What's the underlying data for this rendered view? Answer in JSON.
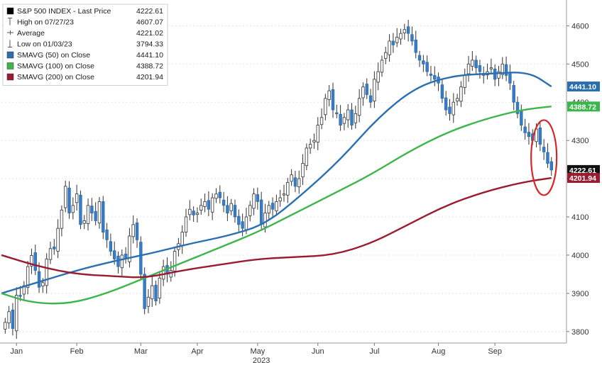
{
  "chart_data": {
    "type": "candlestick",
    "year_label": "2023",
    "x_ticks": [
      "Jan",
      "Feb",
      "Mar",
      "Apr",
      "May",
      "Jun",
      "Jul",
      "Aug",
      "Sep"
    ],
    "y_ticks": [
      3800,
      3900,
      4000,
      4100,
      4200,
      4300,
      4400,
      4500,
      4600
    ],
    "ylim": [
      3770,
      4660
    ],
    "legend": [
      {
        "label": "S&P 500 INDEX - Last Price",
        "value": "4222.61",
        "marker": "square",
        "color": "#000000"
      },
      {
        "label": "High on 07/27/23",
        "value": "4607.07",
        "marker": "high",
        "color": "#555555"
      },
      {
        "label": "Average",
        "value": "4221.02",
        "marker": "avg",
        "color": "#555555"
      },
      {
        "label": "Low on 01/03/23",
        "value": "3794.33",
        "marker": "low",
        "color": "#555555"
      },
      {
        "label": "SMAVG (50)  on Close",
        "value": "4441.10",
        "marker": "square",
        "color": "#2a6fb0"
      },
      {
        "label": "SMAVG (100)  on Close",
        "value": "4388.72",
        "marker": "square",
        "color": "#3cb54a"
      },
      {
        "label": "SMAVG (200)  on Close",
        "value": "4201.94",
        "marker": "square",
        "color": "#9b1b30"
      }
    ],
    "price_tags": [
      {
        "value": "4441.10",
        "level": 4441.1,
        "color": "#2a6fb0",
        "text_color": "#ffffff"
      },
      {
        "value": "4388.72",
        "level": 4388.72,
        "color": "#3cb54a",
        "text_color": "#ffffff"
      },
      {
        "value": "4222.61",
        "level": 4222.61,
        "color": "#111111",
        "text_color": "#ffffff"
      },
      {
        "value": "4201.94",
        "level": 4201.94,
        "color": "#9b1b30",
        "text_color": "#ffffff"
      }
    ],
    "series": [
      {
        "name": "S&P 500 INDEX",
        "style": "candles",
        "points": [
          [
            1,
            3824
          ],
          [
            2,
            3852
          ],
          [
            3,
            3808
          ],
          [
            4,
            3895
          ],
          [
            5,
            3892
          ],
          [
            6,
            3920
          ],
          [
            7,
            3970
          ],
          [
            8,
            3999
          ],
          [
            9,
            3960
          ],
          [
            10,
            3916
          ],
          [
            11,
            3928
          ],
          [
            12,
            3990
          ],
          [
            13,
            4017
          ],
          [
            14,
            4016
          ],
          [
            15,
            4070
          ],
          [
            16,
            4118
          ],
          [
            17,
            4180
          ],
          [
            18,
            4110
          ],
          [
            19,
            4130
          ],
          [
            20,
            4160
          ],
          [
            21,
            4080
          ],
          [
            22,
            4090
          ],
          [
            23,
            4130
          ],
          [
            24,
            4110
          ],
          [
            25,
            4090
          ],
          [
            26,
            4140
          ],
          [
            27,
            4060
          ],
          [
            28,
            4040
          ],
          [
            29,
            4010
          ],
          [
            30,
            3990
          ],
          [
            31,
            3970
          ],
          [
            32,
            4000
          ],
          [
            33,
            3990
          ],
          [
            34,
            4050
          ],
          [
            35,
            4080
          ],
          [
            36,
            4040
          ],
          [
            37,
            3950
          ],
          [
            38,
            3860
          ],
          [
            39,
            3890
          ],
          [
            40,
            3920
          ],
          [
            41,
            3880
          ],
          [
            42,
            3940
          ],
          [
            43,
            3970
          ],
          [
            44,
            3950
          ],
          [
            45,
            3960
          ],
          [
            46,
            4010
          ],
          [
            47,
            4030
          ],
          [
            48,
            4060
          ],
          [
            49,
            4100
          ],
          [
            50,
            4120
          ],
          [
            51,
            4105
          ],
          [
            52,
            4110
          ],
          [
            53,
            4130
          ],
          [
            54,
            4140
          ],
          [
            55,
            4120
          ],
          [
            56,
            4150
          ],
          [
            57,
            4160
          ],
          [
            58,
            4150
          ],
          [
            59,
            4130
          ],
          [
            60,
            4110
          ],
          [
            61,
            4135
          ],
          [
            62,
            4100
          ],
          [
            63,
            4080
          ],
          [
            64,
            4070
          ],
          [
            65,
            4100
          ],
          [
            66,
            4130
          ],
          [
            67,
            4160
          ],
          [
            68,
            4140
          ],
          [
            69,
            4080
          ],
          [
            70,
            4110
          ],
          [
            71,
            4130
          ],
          [
            72,
            4120
          ],
          [
            73,
            4140
          ],
          [
            74,
            4150
          ],
          [
            75,
            4160
          ],
          [
            76,
            4190
          ],
          [
            77,
            4210
          ],
          [
            78,
            4180
          ],
          [
            79,
            4200
          ],
          [
            80,
            4240
          ],
          [
            81,
            4280
          ],
          [
            82,
            4290
          ],
          [
            83,
            4300
          ],
          [
            84,
            4340
          ],
          [
            85,
            4360
          ],
          [
            86,
            4410
          ],
          [
            87,
            4430
          ],
          [
            88,
            4380
          ],
          [
            89,
            4370
          ],
          [
            90,
            4340
          ],
          [
            91,
            4360
          ],
          [
            92,
            4380
          ],
          [
            93,
            4340
          ],
          [
            94,
            4370
          ],
          [
            95,
            4410
          ],
          [
            96,
            4440
          ],
          [
            97,
            4420
          ],
          [
            98,
            4400
          ],
          [
            99,
            4460
          ],
          [
            100,
            4480
          ],
          [
            101,
            4510
          ],
          [
            102,
            4530
          ],
          [
            103,
            4560
          ],
          [
            104,
            4550
          ],
          [
            105,
            4570
          ],
          [
            106,
            4580
          ],
          [
            107,
            4590
          ],
          [
            108,
            4580
          ],
          [
            109,
            4560
          ],
          [
            110,
            4530
          ],
          [
            111,
            4510
          ],
          [
            112,
            4500
          ],
          [
            113,
            4480
          ],
          [
            114,
            4470
          ],
          [
            115,
            4460
          ],
          [
            116,
            4450
          ],
          [
            117,
            4410
          ],
          [
            118,
            4380
          ],
          [
            119,
            4370
          ],
          [
            120,
            4400
          ],
          [
            121,
            4410
          ],
          [
            122,
            4440
          ],
          [
            123,
            4470
          ],
          [
            124,
            4500
          ],
          [
            125,
            4510
          ],
          [
            126,
            4490
          ],
          [
            127,
            4480
          ],
          [
            128,
            4470
          ],
          [
            129,
            4480
          ],
          [
            130,
            4490
          ],
          [
            131,
            4460
          ],
          [
            132,
            4480
          ],
          [
            133,
            4500
          ],
          [
            134,
            4470
          ],
          [
            135,
            4450
          ],
          [
            136,
            4400
          ],
          [
            137,
            4370
          ],
          [
            138,
            4340
          ],
          [
            139,
            4320
          ],
          [
            140,
            4310
          ],
          [
            141,
            4300
          ],
          [
            142,
            4330
          ],
          [
            143,
            4290
          ],
          [
            144,
            4270
          ],
          [
            145,
            4240
          ],
          [
            146,
            4222.61
          ]
        ]
      },
      {
        "name": "SMAVG (50)",
        "style": "line",
        "points": [
          [
            0,
            3900
          ],
          [
            10,
            3930
          ],
          [
            20,
            3960
          ],
          [
            30,
            3985
          ],
          [
            40,
            4005
          ],
          [
            50,
            4030
          ],
          [
            60,
            4050
          ],
          [
            70,
            4080
          ],
          [
            80,
            4160
          ],
          [
            90,
            4250
          ],
          [
            100,
            4360
          ],
          [
            110,
            4440
          ],
          [
            120,
            4470
          ],
          [
            130,
            4475
          ],
          [
            140,
            4480
          ],
          [
            146,
            4441
          ]
        ]
      },
      {
        "name": "SMAVG (100)",
        "style": "line",
        "points": [
          [
            0,
            3900
          ],
          [
            8,
            3875
          ],
          [
            18,
            3872
          ],
          [
            28,
            3900
          ],
          [
            38,
            3940
          ],
          [
            48,
            3980
          ],
          [
            58,
            4020
          ],
          [
            68,
            4060
          ],
          [
            78,
            4110
          ],
          [
            88,
            4160
          ],
          [
            98,
            4210
          ],
          [
            108,
            4270
          ],
          [
            118,
            4320
          ],
          [
            128,
            4355
          ],
          [
            138,
            4380
          ],
          [
            146,
            4389
          ]
        ]
      },
      {
        "name": "SMAVG (200)",
        "style": "line",
        "points": [
          [
            0,
            4000
          ],
          [
            10,
            3970
          ],
          [
            20,
            3950
          ],
          [
            30,
            3945
          ],
          [
            38,
            3940
          ],
          [
            48,
            3960
          ],
          [
            58,
            3975
          ],
          [
            68,
            3990
          ],
          [
            78,
            3995
          ],
          [
            88,
            4000
          ],
          [
            98,
            4030
          ],
          [
            108,
            4080
          ],
          [
            118,
            4130
          ],
          [
            128,
            4165
          ],
          [
            138,
            4190
          ],
          [
            146,
            4202
          ]
        ]
      }
    ]
  }
}
